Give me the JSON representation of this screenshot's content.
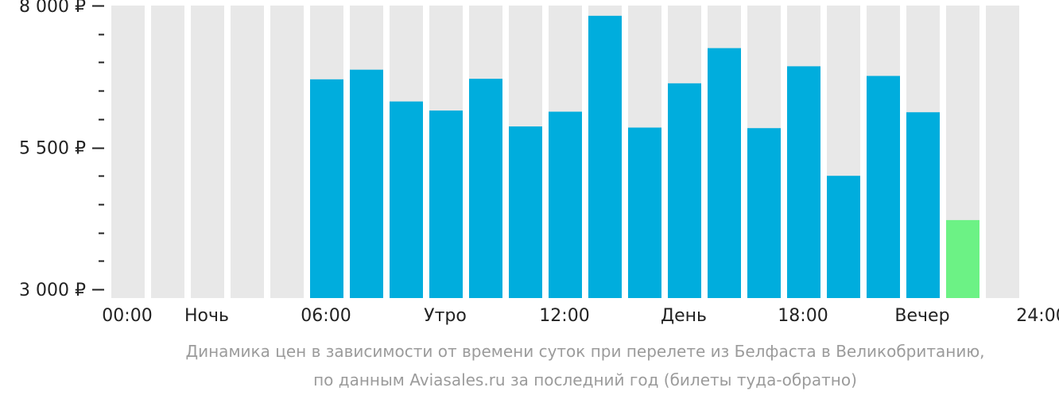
{
  "chart_data": {
    "type": "bar",
    "y_ticks": [
      {
        "value": 8000,
        "label": "8 000 ₽"
      },
      {
        "value": 5500,
        "label": "5 500 ₽"
      },
      {
        "value": 3000,
        "label": "3 000 ₽"
      }
    ],
    "x_labels": [
      {
        "slot": 0,
        "label": "00:00"
      },
      {
        "slot": 2,
        "label": "Ночь"
      },
      {
        "slot": 5,
        "label": "06:00"
      },
      {
        "slot": 8,
        "label": "Утро"
      },
      {
        "slot": 11,
        "label": "12:00"
      },
      {
        "slot": 14,
        "label": "День"
      },
      {
        "slot": 17,
        "label": "18:00"
      },
      {
        "slot": 20,
        "label": "Вечер"
      },
      {
        "slot": 23,
        "label": "24:00"
      }
    ],
    "ylim": [
      3000,
      8000
    ],
    "slot_count": 23,
    "values": [
      null,
      null,
      null,
      null,
      null,
      6700,
      6870,
      6310,
      6150,
      6710,
      5870,
      6130,
      7820,
      5850,
      6630,
      7250,
      5840,
      6930,
      5000,
      6760,
      6120,
      4220,
      null
    ],
    "highlight_index": 21,
    "colors": {
      "bar": "#00addd",
      "highlight": "#6cf285",
      "background_column": "#e8e8e8",
      "axis_text": "#222222",
      "caption_text": "#9b9b9b"
    }
  },
  "caption": {
    "line1": "Динамика цен в зависимости от времени суток при перелете из Белфаста в Великобританию,",
    "line2": "по данным Aviasales.ru за последний год (билеты туда-обратно)"
  }
}
